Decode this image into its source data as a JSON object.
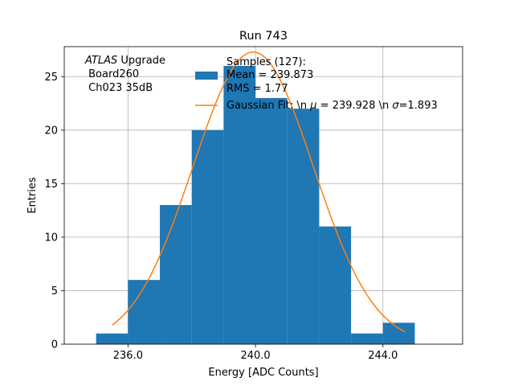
{
  "chart_data": {
    "type": "bar",
    "title": "Run 743",
    "xlabel": "Energy [ADC Counts]",
    "ylabel": "Entries",
    "xlim": [
      234.0,
      246.5
    ],
    "ylim": [
      0,
      27.8
    ],
    "xticks": [
      236.0,
      240.0,
      244.0
    ],
    "xtick_labels": [
      "236.0",
      "240.0",
      "244.0"
    ],
    "yticks": [
      0,
      5,
      10,
      15,
      20,
      25
    ],
    "ytick_labels": [
      "0",
      "5",
      "10",
      "15",
      "20",
      "25"
    ],
    "grid": true,
    "legend_placement": "top-right",
    "bar_color": "#1f77b4",
    "fit_color": "#ff7f0e",
    "histogram": {
      "name": "Samples (127):",
      "name_lines": [
        "Samples (127):",
        "Mean = 239.873",
        "RMS = 1.77"
      ],
      "bins": [
        {
          "left": 235,
          "right": 236,
          "value": 1
        },
        {
          "left": 236,
          "right": 237,
          "value": 6
        },
        {
          "left": 237,
          "right": 238,
          "value": 13
        },
        {
          "left": 238,
          "right": 239,
          "value": 20
        },
        {
          "left": 239,
          "right": 240,
          "value": 26
        },
        {
          "left": 240,
          "right": 241,
          "value": 23
        },
        {
          "left": 241,
          "right": 242,
          "value": 22
        },
        {
          "left": 242,
          "right": 243,
          "value": 11
        },
        {
          "left": 243,
          "right": 244,
          "value": 1
        },
        {
          "left": 244,
          "right": 245,
          "value": 2
        }
      ]
    },
    "fit": {
      "name": "Gaussian Fit: \\n μ = 239.928 \\n σ=1.893",
      "name_parts": [
        "Gaussian Fit: \\n ",
        "μ",
        " = 239.928 \\n ",
        "σ",
        "=1.893"
      ],
      "mu": 239.928,
      "sigma": 1.893,
      "amplitude": 27.3,
      "x_range": [
        235.5,
        244.7
      ]
    },
    "annotation": {
      "line1_italic": "ATLAS",
      "line1_rest": " Upgrade",
      "line2": " Board260",
      "line3": " Ch023 35dB"
    }
  }
}
